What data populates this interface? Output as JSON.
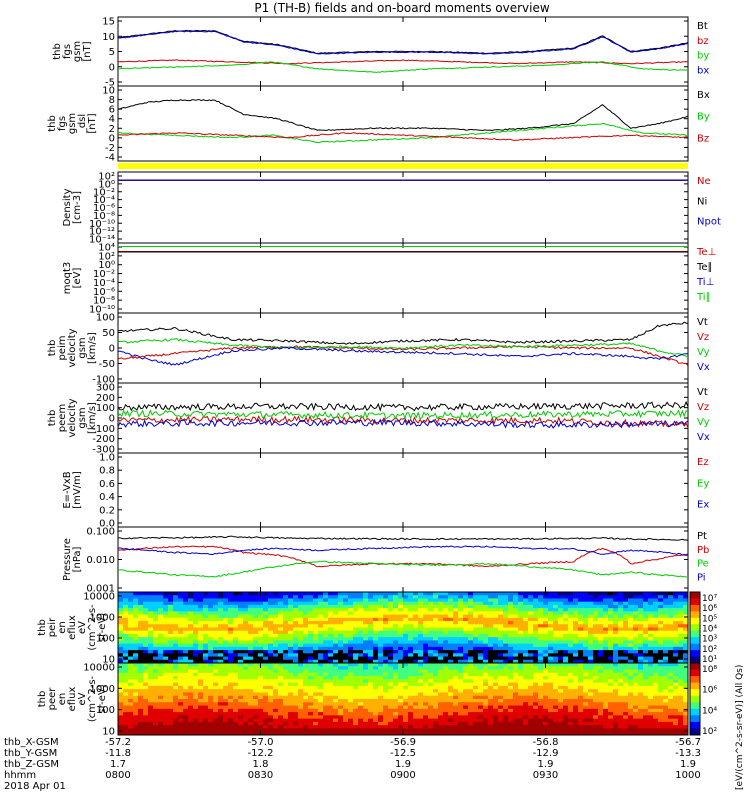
{
  "chart_data": {
    "type": "line",
    "title": "P1 (TH-B) fields and on-board moments overview",
    "date_label": "2018 Apr 01",
    "x": {
      "label": "hhmm",
      "start": "0800",
      "end": "1000",
      "tick_labels": [
        "0800",
        "0830",
        "0900",
        "0930",
        "1000"
      ]
    },
    "ephemeris": [
      {
        "name": "thb_X-GSM",
        "values": [
          "-57.2",
          "-57.0",
          "-56.9",
          "-56.8",
          "-56.7"
        ]
      },
      {
        "name": "thb_Y-GSM",
        "values": [
          "-11.8",
          "-12.2",
          "-12.5",
          "-12.9",
          "-13.3"
        ]
      },
      {
        "name": "thb_Z-GSM",
        "values": [
          "1.7",
          "1.8",
          "1.9",
          "1.9",
          "1.9"
        ]
      }
    ],
    "panels": [
      {
        "id": "fgs",
        "ylabel": [
          "thb",
          "fgs",
          "gsm",
          "[nT]"
        ],
        "ylim": [
          -5,
          15
        ],
        "scale": "linear",
        "ytick_labels": [
          "15",
          "10",
          "5",
          "0",
          "-5"
        ],
        "series": [
          {
            "name": "Bt",
            "color": "#000000",
            "t": [
              0,
              0.05,
              0.1,
              0.17,
              0.22,
              0.28,
              0.35,
              0.45,
              0.55,
              0.65,
              0.72,
              0.8,
              0.85,
              0.9,
              0.95,
              1.0
            ],
            "values": [
              9,
              10,
              11,
              11,
              8,
              7,
              4.5,
              5,
              5,
              4.5,
              5,
              6,
              9.5,
              5,
              6,
              7.5
            ]
          },
          {
            "name": "bz",
            "color": "#cc0000",
            "t": [
              0,
              0.1,
              0.2,
              0.3,
              0.4,
              0.5,
              0.6,
              0.7,
              0.8,
              0.9,
              1.0
            ],
            "values": [
              2,
              2.5,
              2,
              1.5,
              2,
              2.5,
              2,
              1.5,
              2,
              1.5,
              2
            ]
          },
          {
            "name": "by",
            "color": "#00cc00",
            "t": [
              0,
              0.1,
              0.2,
              0.27,
              0.35,
              0.45,
              0.55,
              0.65,
              0.75,
              0.85,
              0.92,
              1.0
            ],
            "values": [
              0,
              0.5,
              1,
              2,
              0,
              -1,
              0,
              0.5,
              1,
              2,
              0,
              -0.5
            ]
          },
          {
            "name": "bx",
            "color": "#0000cc",
            "t": [
              0,
              0.05,
              0.1,
              0.17,
              0.22,
              0.28,
              0.35,
              0.45,
              0.55,
              0.65,
              0.72,
              0.8,
              0.85,
              0.9,
              0.95,
              1.0
            ],
            "values": [
              8.8,
              9.8,
              10.8,
              10.8,
              7.8,
              6.8,
              4.3,
              4.8,
              4.8,
              4.3,
              4.8,
              5.8,
              9.3,
              4.8,
              5.8,
              7.3
            ]
          }
        ]
      },
      {
        "id": "fgs-dsl",
        "ylabel": [
          "thb",
          "fgs",
          "gsm",
          "_dsl",
          "[nT]"
        ],
        "ylim": [
          -5,
          11
        ],
        "scale": "linear",
        "ytick_labels": [
          "10",
          "8",
          "6",
          "4",
          "2",
          "0",
          "-2",
          "-4"
        ],
        "series": [
          {
            "name": "Bx",
            "color": "#000000",
            "t": [
              0,
              0.05,
              0.1,
              0.17,
              0.22,
              0.28,
              0.35,
              0.45,
              0.55,
              0.65,
              0.72,
              0.8,
              0.85,
              0.9,
              0.95,
              1.0
            ],
            "values": [
              6,
              7.5,
              8,
              8,
              5,
              4,
              1.5,
              2,
              2,
              1.5,
              2,
              3,
              7,
              2,
              3,
              4.5
            ]
          },
          {
            "name": "By",
            "color": "#00cc00",
            "t": [
              0,
              0.1,
              0.2,
              0.27,
              0.35,
              0.45,
              0.55,
              0.65,
              0.75,
              0.85,
              0.92,
              1.0
            ],
            "values": [
              1,
              0.5,
              0,
              0.5,
              -1,
              -0.5,
              0,
              1,
              2,
              3,
              1,
              0.5
            ]
          },
          {
            "name": "Bz",
            "color": "#cc0000",
            "t": [
              0,
              0.1,
              0.2,
              0.3,
              0.4,
              0.5,
              0.6,
              0.7,
              0.8,
              0.9,
              1.0
            ],
            "values": [
              0.5,
              1,
              0.5,
              0,
              1,
              0.5,
              0,
              -0.5,
              0,
              0.5,
              0
            ]
          }
        ]
      },
      {
        "id": "density",
        "ylabel": [
          "Density",
          "[cm-3]"
        ],
        "ylim_exp": [
          -14,
          2
        ],
        "scale": "log",
        "ytick_labels": [
          "10²",
          "10⁰",
          "10⁻²",
          "10⁻⁴",
          "10⁻⁶",
          "10⁻⁸",
          "10⁻¹⁰",
          "10⁻¹²",
          "10⁻¹⁴"
        ],
        "series": [
          {
            "name": "Ne",
            "color": "#cc0000",
            "log10_level": 0.1
          },
          {
            "name": "Ni",
            "color": "#000000",
            "log10_level": 0.15
          },
          {
            "name": "Npot",
            "color": "#0000cc",
            "log10_level": 0.2
          }
        ]
      },
      {
        "id": "temperature",
        "ylabel": [
          "moqt3",
          "[eV]"
        ],
        "ylim_exp": [
          -10,
          4
        ],
        "scale": "log",
        "ytick_labels": [
          "10⁴",
          "10²",
          "10⁰",
          "10⁻²",
          "10⁻⁴",
          "10⁻⁶",
          "10⁻⁸",
          "10⁻¹⁰"
        ],
        "series": [
          {
            "name": "Te⊥",
            "color": "#cc0000",
            "log10_level": 2.3
          },
          {
            "name": "Te∥",
            "color": "#000000",
            "log10_level": 2.2
          },
          {
            "name": "Ti⊥",
            "color": "#0000cc",
            "log10_level": 3.3
          },
          {
            "name": "Ti∥",
            "color": "#00cc00",
            "log10_level": 3.3
          }
        ]
      },
      {
        "id": "peim-velocity",
        "ylabel": [
          "thb",
          "peim",
          "velocity",
          "gsm",
          "[km/s]"
        ],
        "ylim": [
          -125,
          125
        ],
        "scale": "linear",
        "ytick_labels": [
          "100",
          "50",
          "0",
          "-50",
          "-100"
        ],
        "series": [
          {
            "name": "Vt",
            "color": "#000000",
            "t": [
              0,
              0.1,
              0.2,
              0.3,
              0.4,
              0.5,
              0.6,
              0.7,
              0.8,
              0.9,
              0.95,
              1.0
            ],
            "values": [
              60,
              70,
              30,
              25,
              15,
              25,
              30,
              20,
              25,
              30,
              80,
              90
            ]
          },
          {
            "name": "Vz",
            "color": "#cc0000",
            "t": [
              0,
              0.1,
              0.2,
              0.3,
              0.4,
              0.5,
              0.6,
              0.7,
              0.8,
              0.9,
              0.95,
              1.0
            ],
            "values": [
              -40,
              -20,
              0,
              5,
              0,
              -5,
              0,
              5,
              0,
              0,
              -30,
              -60
            ]
          },
          {
            "name": "Vy",
            "color": "#00cc00",
            "t": [
              0,
              0.1,
              0.2,
              0.3,
              0.4,
              0.5,
              0.6,
              0.7,
              0.8,
              0.9,
              0.95,
              1.0
            ],
            "values": [
              20,
              30,
              10,
              0,
              5,
              0,
              10,
              5,
              10,
              15,
              -10,
              -30
            ]
          },
          {
            "name": "Vx",
            "color": "#0000cc",
            "t": [
              0,
              0.05,
              0.1,
              0.2,
              0.3,
              0.4,
              0.5,
              0.6,
              0.7,
              0.8,
              0.9,
              0.95,
              1.0
            ],
            "values": [
              -10,
              -40,
              -60,
              -10,
              0,
              -10,
              -15,
              -20,
              -30,
              -20,
              -30,
              -40,
              -20
            ]
          }
        ]
      },
      {
        "id": "peem-velocity",
        "ylabel": [
          "thb",
          "peem",
          "velocity",
          "gsm",
          "[km/s]"
        ],
        "ylim": [
          -300,
          300
        ],
        "scale": "linear",
        "ytick_labels": [
          "300",
          "200",
          "100",
          "0",
          "-100",
          "-200",
          "-300"
        ],
        "series": [
          {
            "name": "Vt",
            "color": "#000000",
            "t": [
              0,
              0.25,
              0.5,
              0.75,
              1.0
            ],
            "values": [
              90,
              100,
              90,
              100,
              110
            ]
          },
          {
            "name": "Vz",
            "color": "#cc0000",
            "t": [
              0,
              0.25,
              0.5,
              0.75,
              1.0
            ],
            "values": [
              -20,
              -10,
              -20,
              -20,
              -60
            ]
          },
          {
            "name": "Vy",
            "color": "#00cc00",
            "t": [
              0,
              0.25,
              0.5,
              0.75,
              1.0
            ],
            "values": [
              40,
              30,
              20,
              30,
              40
            ]
          },
          {
            "name": "Vx",
            "color": "#0000cc",
            "t": [
              0,
              0.25,
              0.5,
              0.75,
              1.0
            ],
            "values": [
              -50,
              -40,
              -40,
              -60,
              -50
            ]
          }
        ]
      },
      {
        "id": "efield",
        "ylabel": [
          "E=-VxB",
          "[mV/m]"
        ],
        "ylim": [
          0,
          1
        ],
        "scale": "linear",
        "ytick_labels": [
          "1.0",
          "0.8",
          "0.6",
          "0.4",
          "0.2",
          "0.0"
        ],
        "series": [
          {
            "name": "Ez",
            "color": "#cc0000",
            "values": []
          },
          {
            "name": "Ey",
            "color": "#00cc00",
            "values": []
          },
          {
            "name": "Ex",
            "color": "#0000cc",
            "values": []
          }
        ]
      },
      {
        "id": "pressure",
        "ylabel": [
          "Pressure",
          "[nPa]"
        ],
        "ylim_exp": [
          -3,
          -0.7
        ],
        "scale": "log",
        "ytick_labels": [
          "0.100",
          "0.010",
          "0.001"
        ],
        "series": [
          {
            "name": "Pt",
            "color": "#000000",
            "t": [
              0,
              0.15,
              0.2,
              0.3,
              0.5,
              0.7,
              0.85,
              0.9,
              1.0
            ],
            "values": [
              0.08,
              0.085,
              0.09,
              0.08,
              0.075,
              0.075,
              0.08,
              0.075,
              0.07
            ]
          },
          {
            "name": "Pb",
            "color": "#cc0000",
            "t": [
              0,
              0.05,
              0.1,
              0.17,
              0.22,
              0.28,
              0.35,
              0.45,
              0.55,
              0.65,
              0.72,
              0.8,
              0.85,
              0.9,
              0.95,
              1.0
            ],
            "values": [
              0.03,
              0.035,
              0.04,
              0.04,
              0.025,
              0.02,
              0.008,
              0.01,
              0.01,
              0.008,
              0.01,
              0.012,
              0.035,
              0.01,
              0.015,
              0.022
            ]
          },
          {
            "name": "Pe",
            "color": "#00cc00",
            "t": [
              0,
              0.05,
              0.1,
              0.17,
              0.22,
              0.28,
              0.35,
              0.45,
              0.55,
              0.65,
              0.72,
              0.8,
              0.85,
              0.9,
              0.95,
              1.0
            ],
            "values": [
              0.006,
              0.005,
              0.004,
              0.0035,
              0.005,
              0.008,
              0.012,
              0.01,
              0.009,
              0.01,
              0.008,
              0.006,
              0.004,
              0.005,
              0.004,
              0.0035
            ]
          },
          {
            "name": "Pi",
            "color": "#0000cc",
            "t": [
              0,
              0.05,
              0.1,
              0.17,
              0.22,
              0.28,
              0.35,
              0.45,
              0.55,
              0.65,
              0.72,
              0.8,
              0.85,
              0.9,
              0.95,
              1.0
            ],
            "values": [
              0.035,
              0.03,
              0.025,
              0.022,
              0.03,
              0.035,
              0.03,
              0.035,
              0.04,
              0.04,
              0.035,
              0.033,
              0.022,
              0.03,
              0.026,
              0.02
            ]
          }
        ]
      },
      {
        "id": "peir",
        "type": "heatmap",
        "ylabel": [
          "thb",
          "peir",
          "en",
          "eflux",
          "eV",
          "(cm^2-s-",
          "sr-eV)"
        ],
        "ytick_labels": [
          "10000",
          "1000",
          "100",
          "10"
        ],
        "colorbar_ticks": [
          "10⁷",
          "10⁶",
          "10⁵",
          "10⁴",
          "10³",
          "10²",
          "10¹"
        ]
      },
      {
        "id": "peer",
        "type": "heatmap",
        "ylabel": [
          "thb",
          "peer",
          "en",
          "eflux",
          "eV",
          "(cm^2-s-",
          "sr-eV)"
        ],
        "ytick_labels": [
          "10000",
          "1000",
          "100",
          "10"
        ],
        "colorbar_ticks": [
          "10⁸",
          "10⁶",
          "10⁴",
          "10²"
        ]
      }
    ],
    "colorbar_label": "[eV/(cm^2-s-sr-eV)] (All Qs)"
  }
}
